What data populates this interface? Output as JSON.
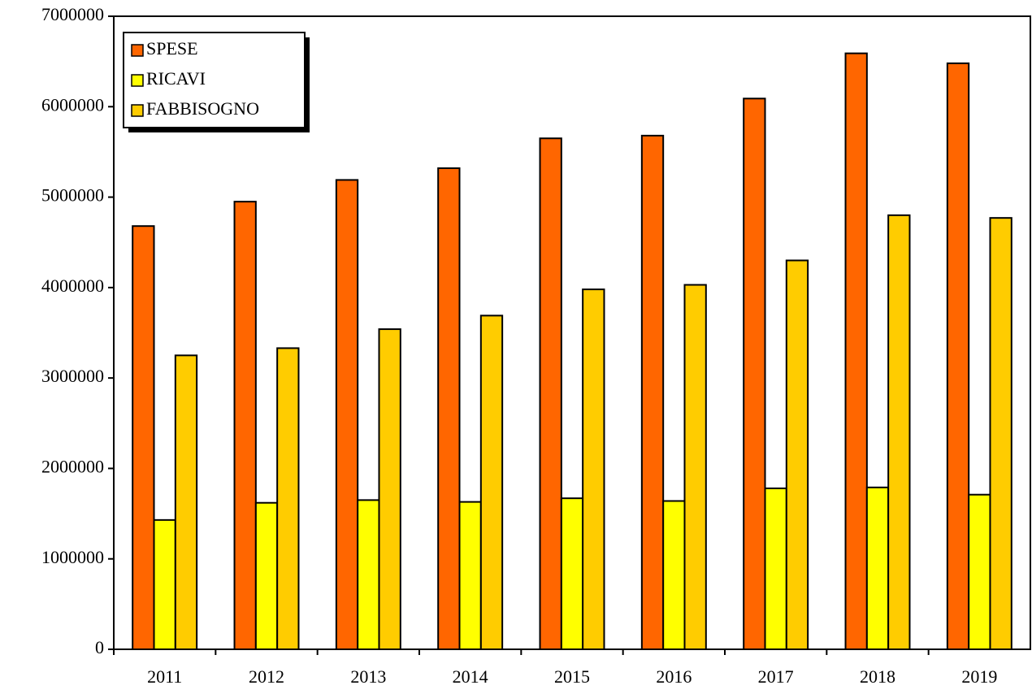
{
  "chart_data": {
    "type": "bar",
    "categories": [
      "2011",
      "2012",
      "2013",
      "2014",
      "2015",
      "2016",
      "2017",
      "2018",
      "2019"
    ],
    "series": [
      {
        "name": "SPESE",
        "color": "#ff6600",
        "values": [
          4680000,
          4950000,
          5190000,
          5320000,
          5650000,
          5680000,
          6090000,
          6590000,
          6480000
        ]
      },
      {
        "name": "RICAVI",
        "color": "#ffff00",
        "values": [
          1430000,
          1620000,
          1650000,
          1630000,
          1670000,
          1640000,
          1780000,
          1790000,
          1710000
        ]
      },
      {
        "name": "FABBISOGNO",
        "color": "#ffcc00",
        "values": [
          3250000,
          3330000,
          3540000,
          3690000,
          3980000,
          4030000,
          4300000,
          4800000,
          4770000
        ]
      }
    ],
    "ylim": [
      0,
      7000000
    ],
    "yticks": [
      0,
      1000000,
      2000000,
      3000000,
      4000000,
      5000000,
      6000000,
      7000000
    ],
    "legend": "upper-left"
  }
}
